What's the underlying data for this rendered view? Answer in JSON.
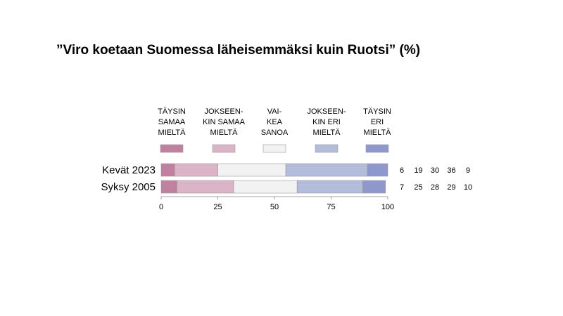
{
  "chart_data": {
    "type": "stacked-bar-horizontal",
    "title": "”Viro koetaan Suomessa läheisemmäksi kuin Ruotsi” (%)",
    "categories": [
      "Kevät 2023",
      "Syksy 2005"
    ],
    "series": [
      {
        "name": "TÄYSIN\nSAMAA\nMIELTÄ",
        "color": "#c0809f",
        "values": [
          6,
          7
        ]
      },
      {
        "name": "JOKSEEN-\nKIN SAMAA\nMIELTÄ",
        "color": "#dbb4c8",
        "values": [
          19,
          25
        ]
      },
      {
        "name": "VAI-\nKEA\nSANOA",
        "color": "#f2f2f2",
        "values": [
          30,
          28
        ]
      },
      {
        "name": "JOKSEEN-\nKIN ERI\nMIELTÄ",
        "color": "#b4bcdc",
        "values": [
          36,
          29
        ]
      },
      {
        "name": "TÄYSIN\nERI\nMIELTÄ",
        "color": "#8f98cc",
        "values": [
          9,
          10
        ]
      }
    ],
    "xlim": [
      0,
      100
    ],
    "xticks": [
      0,
      25,
      50,
      75,
      100
    ]
  }
}
